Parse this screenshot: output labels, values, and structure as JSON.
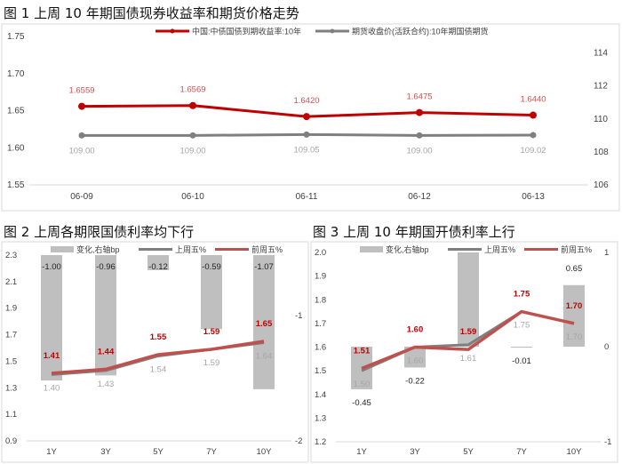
{
  "colors": {
    "red": "#c00000",
    "red_line": "#c0504d",
    "gray_line": "#7f7f7f",
    "bar": "#bfbfbf",
    "label_gray": "#a6a6a6",
    "axis_text": "#404040"
  },
  "chart_data": [
    {
      "type": "line",
      "title": "图 1  上周 10 年期国债现券收益率和期货价格走势",
      "categories": [
        "06-09",
        "06-10",
        "06-11",
        "06-12",
        "06-13"
      ],
      "series": [
        {
          "name": "中国:中债国债到期收益率:10年",
          "axis": "left",
          "values": [
            1.6559,
            1.6569,
            1.642,
            1.6475,
            1.644
          ],
          "labels": [
            "1.6559",
            "1.6569",
            "1.6420",
            "1.6475",
            "1.6440"
          ]
        },
        {
          "name": "期货收盘价(活跃合约):10年期国债期货",
          "axis": "right",
          "values": [
            109.0,
            109.0,
            109.05,
            109.0,
            109.02
          ],
          "labels": [
            "109.00",
            "109.00",
            "109.05",
            "109.00",
            "109.02"
          ]
        }
      ],
      "ylim": [
        1.55,
        1.75
      ],
      "yticks": [
        "1.75",
        "1.70",
        "1.65",
        "1.60",
        "1.55"
      ],
      "y2lim": [
        106,
        115
      ],
      "y2ticks": [
        "114",
        "112",
        "110",
        "108",
        "106"
      ],
      "legend": "top",
      "grid": false
    },
    {
      "type": "bar+line",
      "title": "图 2  上周各期限国债利率均下行",
      "categories": [
        "1Y",
        "3Y",
        "5Y",
        "7Y",
        "10Y"
      ],
      "bars": {
        "name": "变化,右轴bp",
        "values": [
          -1.0,
          -0.96,
          -0.12,
          -0.59,
          -1.07
        ],
        "labels": [
          "-1.00",
          "-0.96",
          "-0.12",
          "-0.59",
          "-1.07"
        ]
      },
      "series": [
        {
          "name": "上周五%",
          "values": [
            1.4,
            1.43,
            1.54,
            1.59,
            1.64
          ],
          "labels": [
            "1.40",
            "1.43",
            "1.54",
            "1.59",
            "1.64"
          ]
        },
        {
          "name": "前周五%",
          "values": [
            1.41,
            1.44,
            1.55,
            1.59,
            1.65
          ],
          "labels": [
            "1.41",
            "1.44",
            "1.55",
            "1.59",
            "1.65"
          ]
        }
      ],
      "ylim": [
        0.9,
        2.3
      ],
      "yticks": [
        "2.3",
        "2.1",
        "1.9",
        "1.7",
        "1.5",
        "1.3",
        "1.1",
        "0.9"
      ],
      "y2ticks": [
        "-1",
        "-2"
      ],
      "legend": "top",
      "grid": false
    },
    {
      "type": "bar+line",
      "title": "图 3  上周 10 年期国开债利率上行",
      "categories": [
        "1Y",
        "3Y",
        "5Y",
        "7Y",
        "10Y"
      ],
      "bars": {
        "name": "变化,右轴bp",
        "values": [
          -0.45,
          -0.22,
          1.0,
          -0.01,
          0.65
        ],
        "labels": [
          "-0.45",
          "-0.22",
          "",
          "-0.01",
          "0.65"
        ]
      },
      "series": [
        {
          "name": "上周五%",
          "values": [
            1.5,
            1.6,
            1.61,
            1.75,
            1.7
          ],
          "labels": [
            "1.50",
            "1.60",
            "1.61",
            "1.75",
            "1.70"
          ]
        },
        {
          "name": "前周五%",
          "values": [
            1.51,
            1.6,
            1.59,
            1.75,
            1.7
          ],
          "labels": [
            "1.51",
            "1.60",
            "1.59",
            "1.75",
            "1.70"
          ]
        }
      ],
      "ylim": [
        1.2,
        2.0
      ],
      "yticks": [
        "2.0",
        "1.9",
        "1.8",
        "1.7",
        "1.6",
        "1.5",
        "1.4",
        "1.3",
        "1.2"
      ],
      "y2lim": [
        -1,
        1
      ],
      "y2ticks": [
        "1",
        "0",
        "-1"
      ],
      "legend": "top",
      "grid": false
    }
  ]
}
